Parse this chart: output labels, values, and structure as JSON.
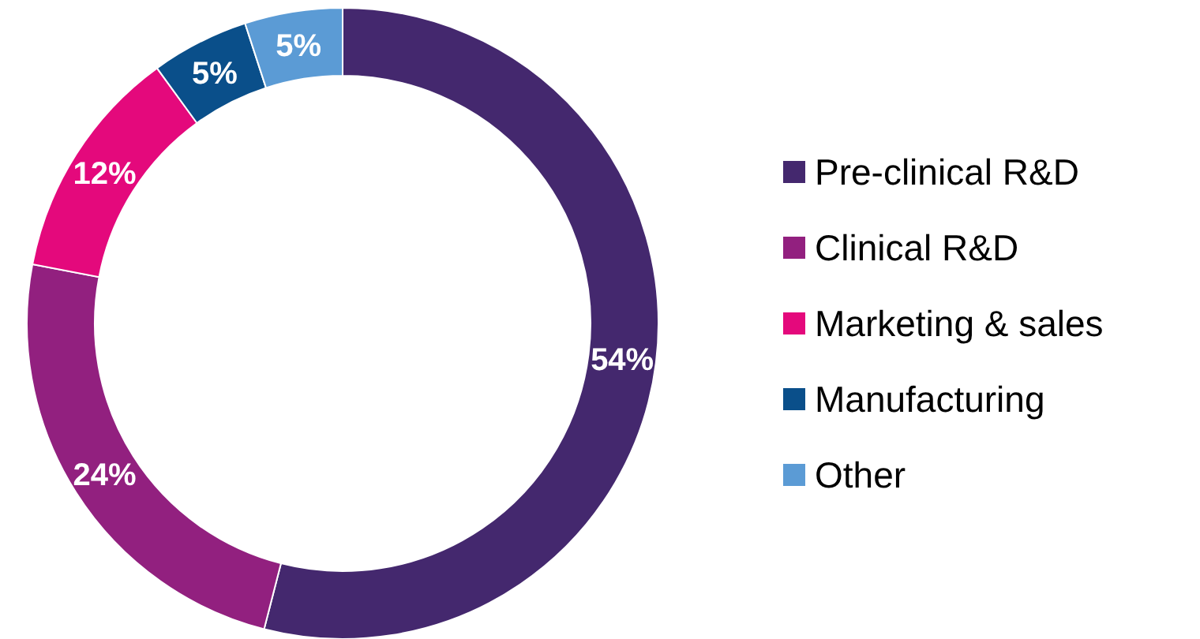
{
  "chart_data": {
    "type": "donut",
    "categories": [
      "Pre-clinical R&D",
      "Clinical R&D",
      "Marketing & sales",
      "Manufacturing",
      "Other"
    ],
    "values": [
      54,
      24,
      12,
      5,
      5
    ],
    "colors": [
      "#44286e",
      "#92207f",
      "#e4097c",
      "#0a4f8a",
      "#5b9bd5"
    ],
    "value_labels": [
      "54%",
      "24%",
      "12%",
      "5%",
      "5%"
    ],
    "legend": "right"
  }
}
